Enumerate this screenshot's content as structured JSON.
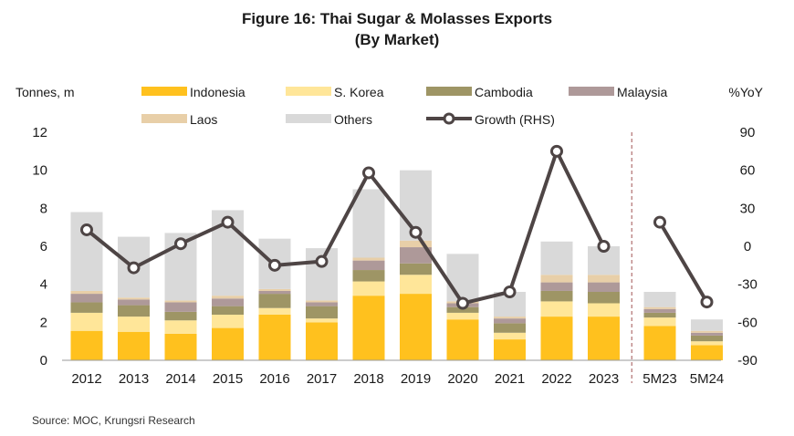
{
  "chart_data": {
    "type": "bar",
    "stacked": true,
    "title": "Figure 16: Thai Sugar & Molasses Exports",
    "subtitle": "(By Market)",
    "ylabel": "Tonnes, m",
    "y2label": "%YoY",
    "ylim": [
      0,
      12
    ],
    "y2lim": [
      -90,
      90
    ],
    "yticks": [
      "0",
      "2",
      "4",
      "6",
      "8",
      "10",
      "12"
    ],
    "y2ticks": [
      "-90",
      "-60",
      "-30",
      "0",
      "30",
      "60",
      "90"
    ],
    "categories": [
      "2012",
      "2013",
      "2014",
      "2015",
      "2016",
      "2017",
      "2018",
      "2019",
      "2020",
      "2021",
      "2022",
      "2023",
      "5M23",
      "5M24"
    ],
    "legend_position": "top",
    "series": [
      {
        "name": "Indonesia",
        "color": "#FFC11E",
        "values": [
          1.55,
          1.5,
          1.4,
          1.7,
          2.4,
          2.0,
          3.4,
          3.5,
          2.15,
          1.1,
          2.3,
          2.3,
          1.8,
          0.8
        ]
      },
      {
        "name": "S. Korea",
        "color": "#FFE699",
        "values": [
          0.95,
          0.8,
          0.7,
          0.7,
          0.35,
          0.2,
          0.75,
          1.0,
          0.35,
          0.35,
          0.8,
          0.7,
          0.45,
          0.2
        ]
      },
      {
        "name": "Cambodia",
        "color": "#9E9565",
        "values": [
          0.55,
          0.6,
          0.45,
          0.45,
          0.75,
          0.65,
          0.6,
          0.6,
          0.3,
          0.5,
          0.55,
          0.6,
          0.25,
          0.3
        ]
      },
      {
        "name": "Malaysia",
        "color": "#AE9999",
        "values": [
          0.45,
          0.3,
          0.5,
          0.4,
          0.15,
          0.2,
          0.5,
          0.85,
          0.2,
          0.25,
          0.45,
          0.5,
          0.2,
          0.15
        ]
      },
      {
        "name": "Laos",
        "color": "#E8CFA8",
        "values": [
          0.15,
          0.1,
          0.1,
          0.15,
          0.1,
          0.1,
          0.15,
          0.35,
          0.1,
          0.1,
          0.4,
          0.4,
          0.1,
          0.1
        ]
      },
      {
        "name": "Others",
        "color": "#D9D9D9",
        "values": [
          4.15,
          3.2,
          3.55,
          4.5,
          2.65,
          2.75,
          3.6,
          3.7,
          2.5,
          1.3,
          1.75,
          1.5,
          0.8,
          0.6
        ]
      }
    ],
    "line_series": {
      "name": "Growth (RHS)",
      "color": "#4E4545",
      "axis": "right",
      "values": [
        13,
        -17,
        2,
        19,
        -15,
        -12,
        58,
        11,
        -45,
        -36,
        75,
        0,
        19,
        -44
      ]
    },
    "divider_after": "2023"
  },
  "source": "Source: MOC, Krungsri Research"
}
